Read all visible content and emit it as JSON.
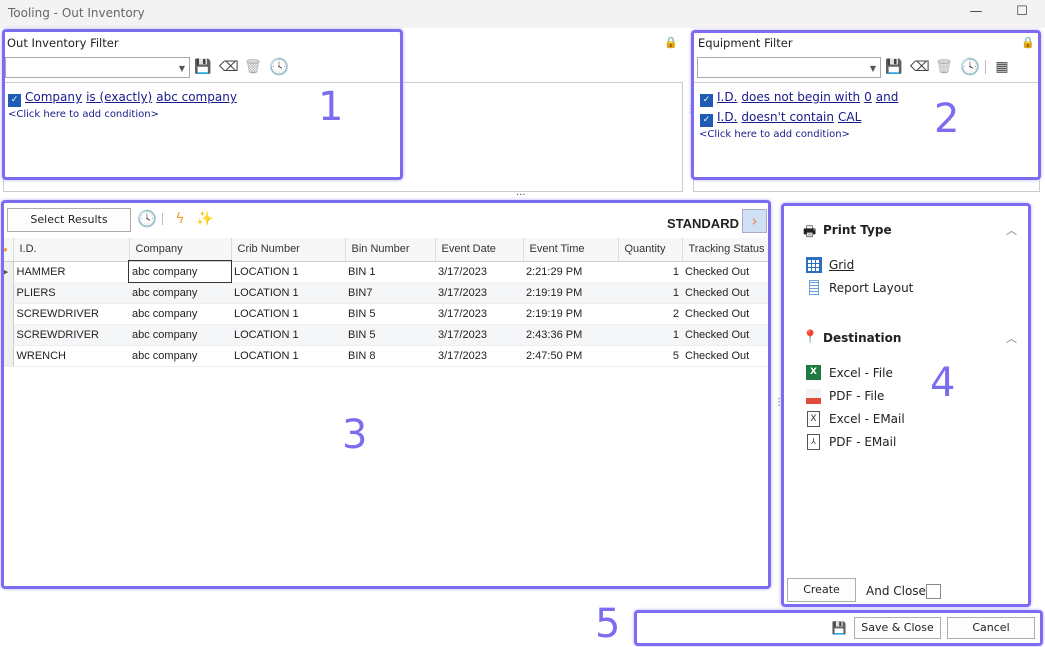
{
  "window": {
    "title": "Tooling - Out Inventory",
    "minimize_icon": "minimize-icon",
    "maximize_icon": "maximize-icon"
  },
  "out_filter": {
    "title": "Out Inventory Filter",
    "combo_value": "",
    "conditions": [
      {
        "checked": true,
        "field": "Company",
        "op": "is (exactly)",
        "value": "abc company"
      }
    ],
    "add_condition": "<Click here to add condition>"
  },
  "equipment_filter": {
    "title": "Equipment Filter",
    "combo_value": "",
    "conditions": [
      {
        "checked": true,
        "field": "I.D.",
        "op": "does not begin with",
        "value": "0",
        "join": "and"
      },
      {
        "checked": true,
        "field": "I.D.",
        "op": "doesn't contain",
        "value": "CAL"
      }
    ],
    "add_condition": "<Click here to add condition>"
  },
  "results": {
    "select_button": "Select Results",
    "layout_name": "STANDARD",
    "columns": [
      "I.D.",
      "Company",
      "Crib Number",
      "Bin Number",
      "Event Date",
      "Event Time",
      "Quantity",
      "Tracking Status"
    ],
    "rows": [
      [
        "HAMMER",
        "abc company",
        "LOCATION 1",
        "BIN 1",
        "3/17/2023",
        "2:21:29 PM",
        "1",
        "Checked Out"
      ],
      [
        "PLIERS",
        "abc company",
        "LOCATION 1",
        "BIN7",
        "3/17/2023",
        "2:19:19 PM",
        "1",
        "Checked Out"
      ],
      [
        "SCREWDRIVER",
        "abc company",
        "LOCATION 1",
        "BIN 5",
        "3/17/2023",
        "2:19:19 PM",
        "2",
        "Checked Out"
      ],
      [
        "SCREWDRIVER",
        "abc company",
        "LOCATION 1",
        "BIN 5",
        "3/17/2023",
        "2:43:36 PM",
        "1",
        "Checked Out"
      ],
      [
        "WRENCH",
        "abc company",
        "LOCATION 1",
        "BIN 8",
        "3/17/2023",
        "2:47:50 PM",
        "5",
        "Checked Out"
      ]
    ]
  },
  "print": {
    "print_type_title": "Print Type",
    "print_types": [
      "Grid",
      "Report Layout"
    ],
    "destination_title": "Destination",
    "destinations": [
      "Excel  - File",
      "PDF - File",
      "Excel - EMail",
      "PDF - EMail"
    ],
    "create": "Create",
    "and_close": "And Close",
    "and_close_checked": false
  },
  "footer": {
    "save_close": "Save & Close",
    "cancel": "Cancel"
  },
  "annotations": [
    "1",
    "2",
    "3",
    "4",
    "5"
  ],
  "colors": {
    "accent": "#7b6cf0",
    "link": "#1a1a8c",
    "checkbox": "#1e5bb5",
    "lock": "#f0a030",
    "arrow_button": "#cfe0f5"
  }
}
